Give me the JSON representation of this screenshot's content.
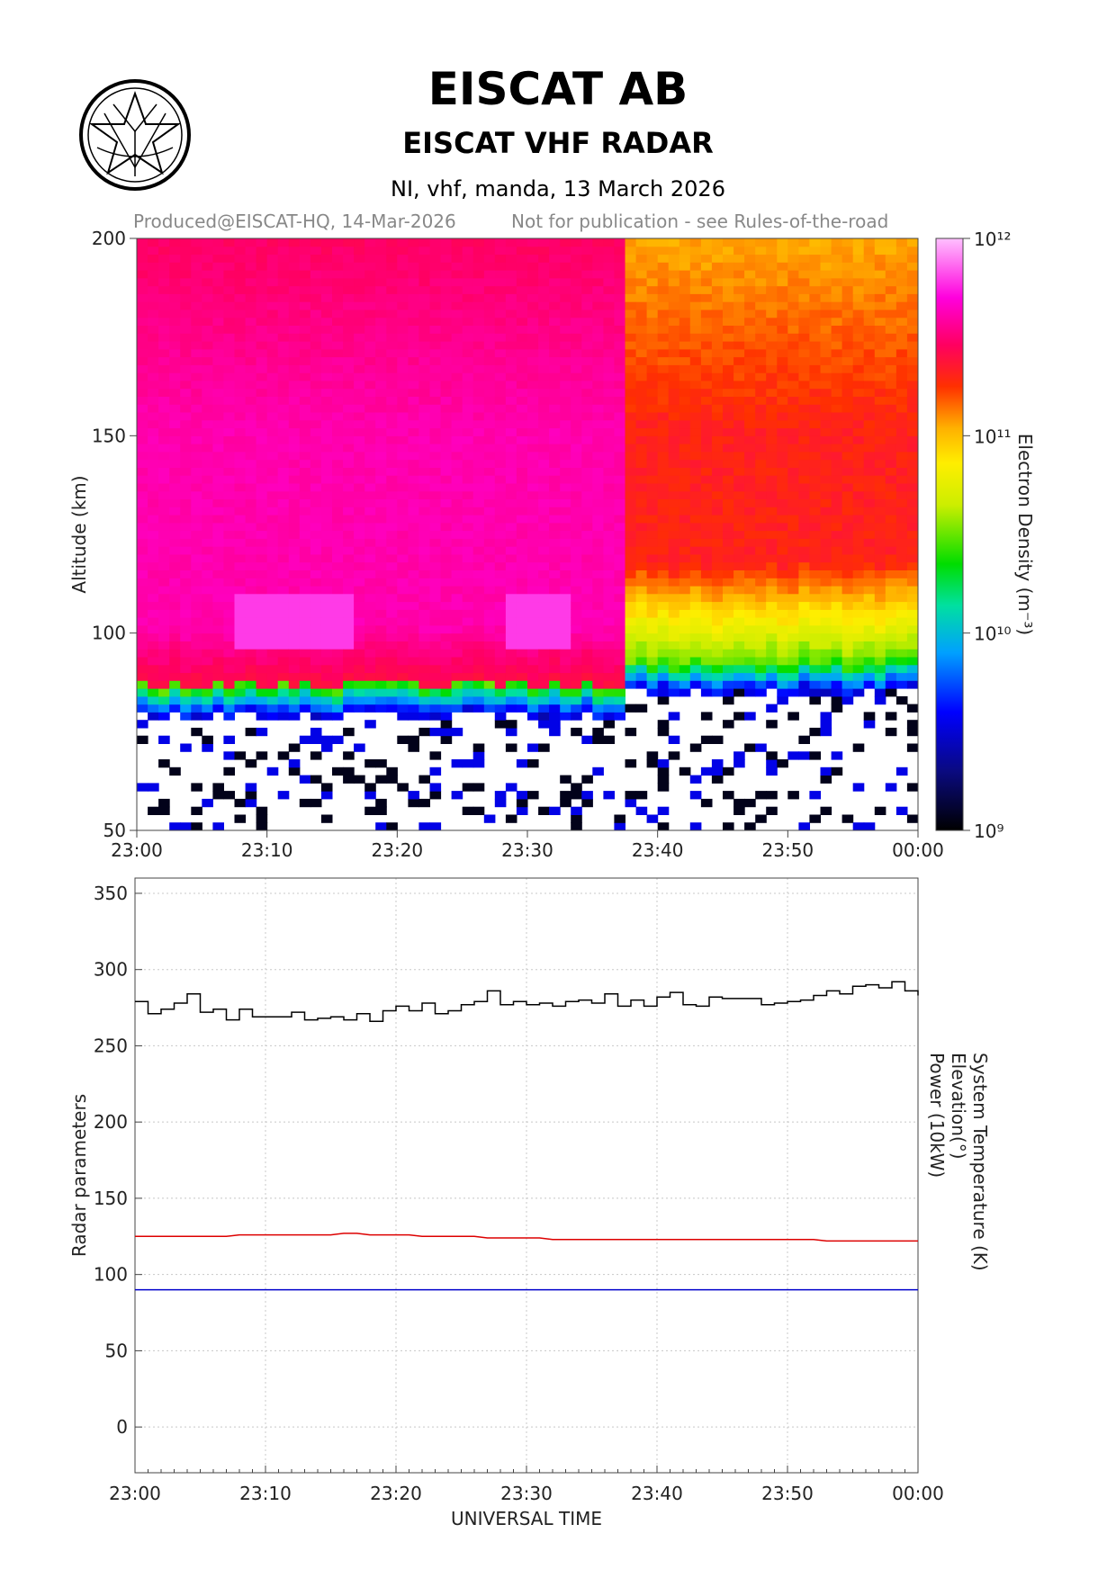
{
  "header": {
    "title": "EISCAT AB",
    "subtitle": "EISCAT VHF RADAR",
    "info": "NI, vhf, manda, 13 March 2026",
    "produced": "Produced@EISCAT-HQ, 14-Mar-2026",
    "notice": "Not for publication - see Rules-of-the-road"
  },
  "chart_data": [
    {
      "type": "heatmap",
      "ylabel": "Altitude (km)",
      "xticks": [
        "23:00",
        "23:10",
        "23:20",
        "23:30",
        "23:40",
        "23:50",
        "00:00"
      ],
      "yticks": [
        50,
        100,
        150,
        200
      ],
      "ylim": [
        50,
        200
      ],
      "colorbar": {
        "label": "Electron Density (m⁻³)",
        "scale": "log",
        "range": [
          1000000000.0,
          1000000000000.0
        ],
        "ticks": [
          "10⁹",
          "10¹⁰",
          "10¹¹",
          "10¹²"
        ]
      },
      "profile_summary": {
        "peak_density_before_2337": "~1e12 above 100 km (magenta)",
        "lower_edge_altitude_km_before_2337": 86,
        "lower_edge_altitude_km_after_2337": 92,
        "density_after_2337_above_110km": "~1e11 (red/orange)",
        "below_80km": "noise"
      }
    },
    {
      "type": "line",
      "xlabel": "UNIVERSAL TIME",
      "ylabel": "Radar parameters",
      "xticks": [
        "23:00",
        "23:10",
        "23:20",
        "23:30",
        "23:40",
        "23:50",
        "00:00"
      ],
      "yticks": [
        0,
        50,
        100,
        150,
        200,
        250,
        300,
        350
      ],
      "ylim": [
        -30,
        360
      ],
      "grid": true,
      "legend": [
        {
          "name": "System Temperature (K)",
          "color": "#000000"
        },
        {
          "name": "Elevation(°)",
          "color": "#0000cc"
        },
        {
          "name": "Power (10kW)",
          "color": "#dd0000"
        }
      ],
      "x_minutes": [
        0,
        1,
        2,
        3,
        4,
        5,
        6,
        7,
        8,
        9,
        10,
        11,
        12,
        13,
        14,
        15,
        16,
        17,
        18,
        19,
        20,
        21,
        22,
        23,
        24,
        25,
        26,
        27,
        28,
        29,
        30,
        31,
        32,
        33,
        34,
        35,
        36,
        37,
        38,
        39,
        40,
        41,
        42,
        43,
        44,
        45,
        46,
        47,
        48,
        49,
        50,
        51,
        52,
        53,
        54,
        55,
        56,
        57,
        58,
        59,
        60
      ],
      "series": [
        {
          "name": "System Temperature (K)",
          "color": "#000000",
          "step": true,
          "values": [
            279,
            271,
            274,
            278,
            284,
            272,
            274,
            267,
            274,
            269,
            269,
            269,
            272,
            267,
            268,
            269,
            267,
            271,
            266,
            273,
            276,
            273,
            278,
            271,
            273,
            277,
            279,
            286,
            277,
            279,
            277,
            278,
            276,
            279,
            280,
            278,
            284,
            276,
            280,
            276,
            282,
            285,
            277,
            276,
            282,
            281,
            281,
            281,
            277,
            278,
            279,
            280,
            283,
            286,
            284,
            289,
            290,
            288,
            292,
            286,
            283
          ]
        },
        {
          "name": "Elevation(°)",
          "color": "#0000cc",
          "values": [
            90,
            90,
            90,
            90,
            90,
            90,
            90,
            90,
            90,
            90,
            90,
            90,
            90,
            90,
            90,
            90,
            90,
            90,
            90,
            90,
            90,
            90,
            90,
            90,
            90,
            90,
            90,
            90,
            90,
            90,
            90,
            90,
            90,
            90,
            90,
            90,
            90,
            90,
            90,
            90,
            90,
            90,
            90,
            90,
            90,
            90,
            90,
            90,
            90,
            90,
            90,
            90,
            90,
            90,
            90,
            90,
            90,
            90,
            90,
            90,
            90
          ]
        },
        {
          "name": "Power (10kW)",
          "color": "#dd0000",
          "values": [
            125,
            125,
            125,
            125,
            125,
            125,
            125,
            125,
            126,
            126,
            126,
            126,
            126,
            126,
            126,
            126,
            127,
            127,
            126,
            126,
            126,
            126,
            125,
            125,
            125,
            125,
            125,
            124,
            124,
            124,
            124,
            124,
            123,
            123,
            123,
            123,
            123,
            123,
            123,
            123,
            123,
            123,
            123,
            123,
            123,
            123,
            123,
            123,
            123,
            123,
            123,
            123,
            123,
            122,
            122,
            122,
            122,
            122,
            122,
            122,
            122
          ]
        }
      ]
    }
  ],
  "styles": {
    "grid_color": "#c8c8c8",
    "frame_color": "#444444"
  }
}
